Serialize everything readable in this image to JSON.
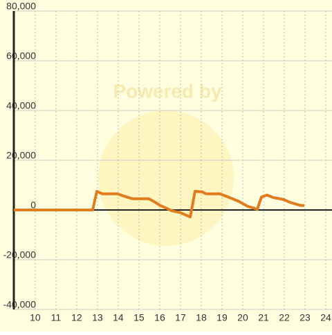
{
  "chart_data": {
    "type": "line",
    "watermark": "Powered by",
    "x": [
      8.97,
      12.77,
      12.97,
      13.23,
      13.97,
      14.3,
      14.7,
      15.47,
      15.7,
      16.03,
      16.3,
      16.57,
      16.97,
      17.47,
      17.7,
      18.03,
      18.23,
      18.9,
      19.3,
      19.8,
      20.23,
      20.7,
      20.9,
      21.17,
      21.47,
      21.97,
      22.3,
      22.8,
      22.97
    ],
    "series": [
      {
        "color": "#e07c1e",
        "values": [
          0,
          0,
          7500,
          6500,
          6500,
          5500,
          4500,
          4500,
          3500,
          1800,
          800,
          -300,
          -1000,
          -2800,
          7500,
          7300,
          6500,
          6500,
          5200,
          3500,
          1500,
          300,
          5200,
          6000,
          5000,
          4200,
          3000,
          1800,
          1800
        ]
      }
    ],
    "xlim": [
      8.97,
      24.3
    ],
    "xticks": [
      10,
      11,
      12,
      13,
      14,
      15,
      16,
      17,
      18,
      19,
      20,
      21,
      22,
      23,
      24
    ],
    "ylim": [
      -40000,
      80000
    ],
    "yticks": [
      {
        "value": -40000,
        "label": "-40,000"
      },
      {
        "value": -20000,
        "label": "-20,000"
      },
      0,
      {
        "value": 20000,
        "label": "20,000"
      },
      {
        "value": 40000,
        "label": "40,000"
      },
      {
        "value": 60000,
        "label": "60,000"
      },
      {
        "value": 80000,
        "label": "80,000"
      }
    ],
    "grid": true
  }
}
